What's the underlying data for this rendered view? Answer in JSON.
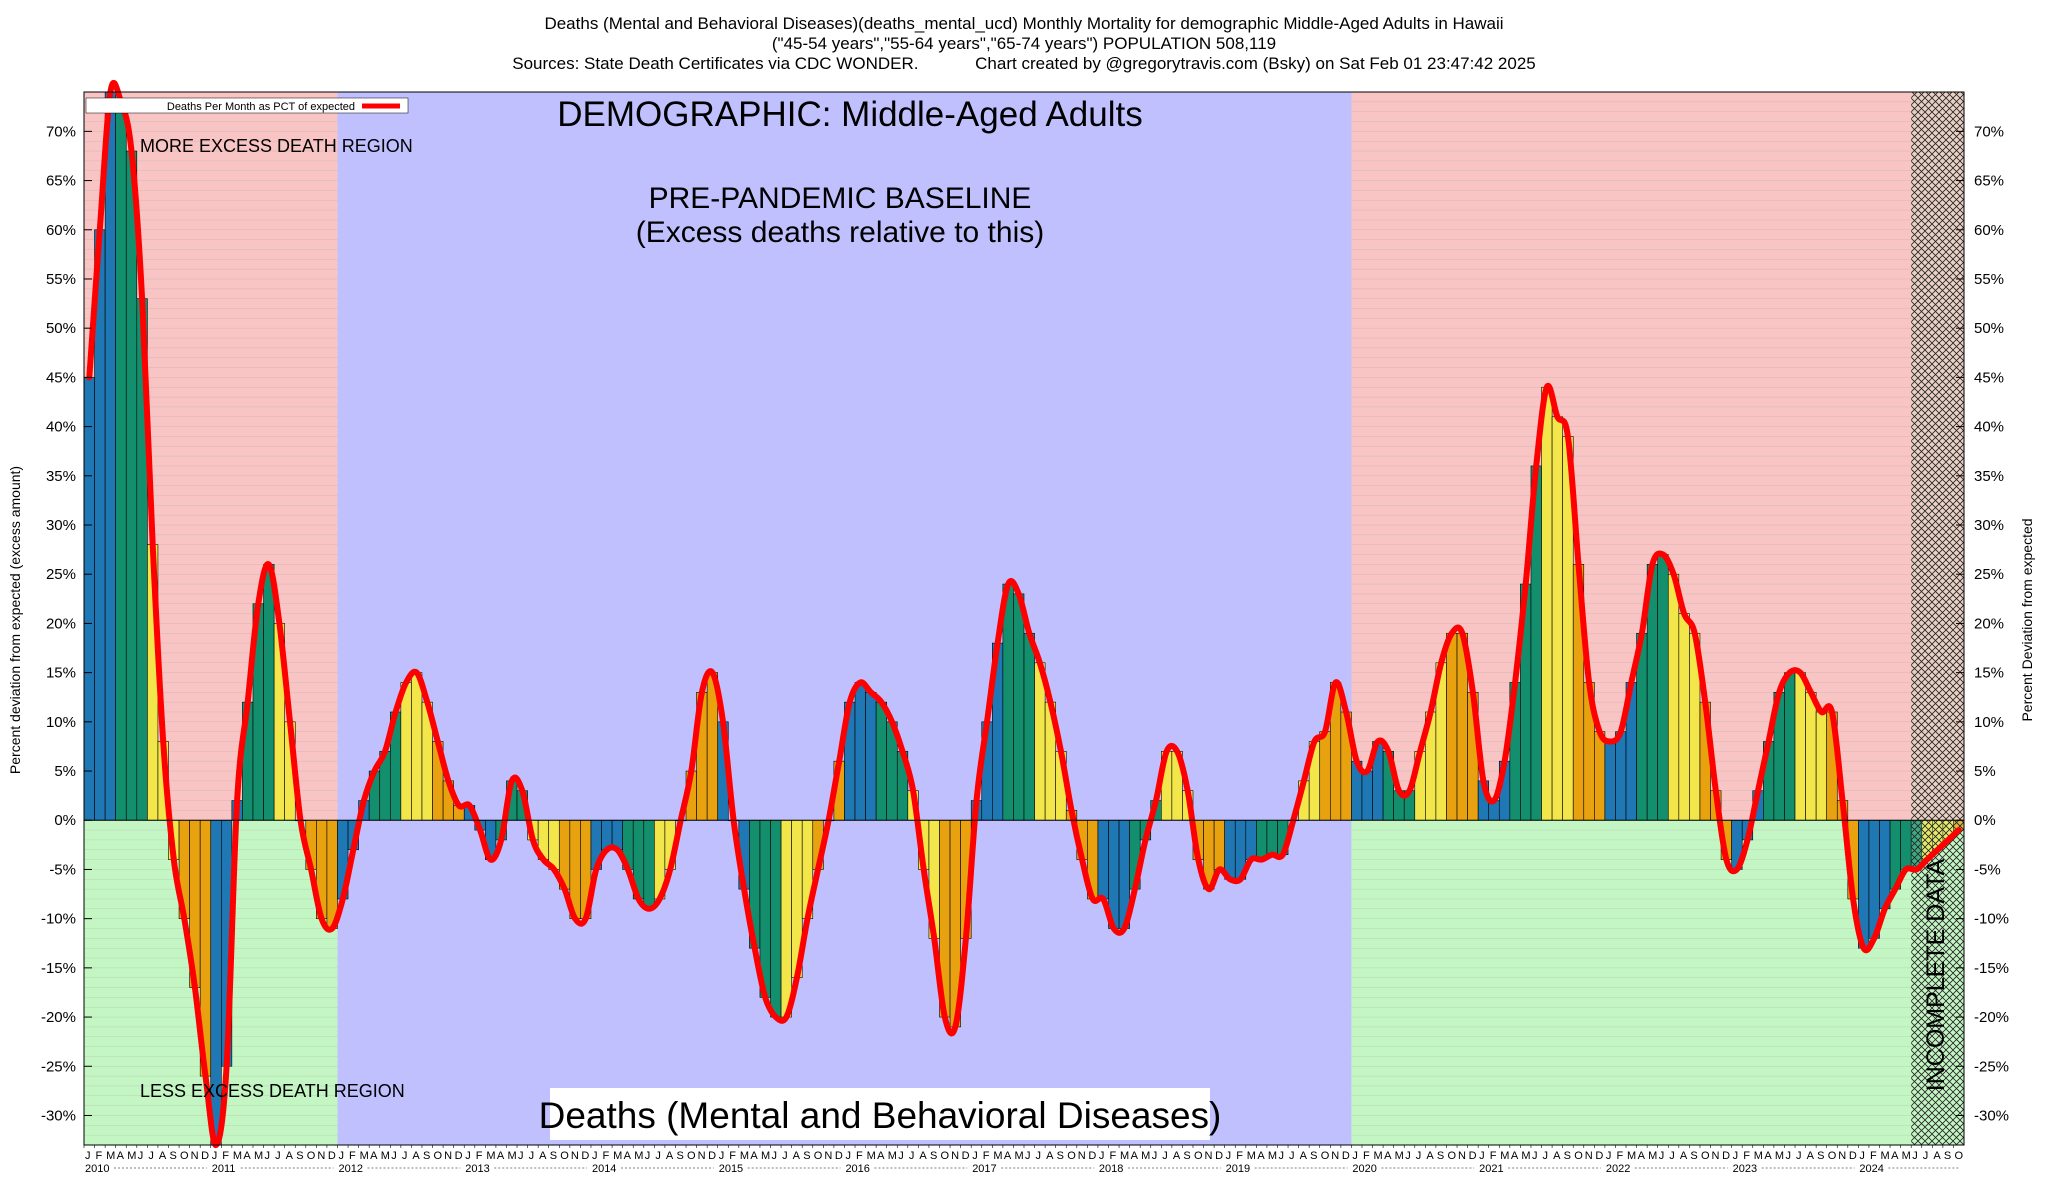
{
  "header": {
    "title": "Deaths (Mental and Behavioral Diseases)(deaths_mental_ucd) Monthly Mortality for demographic Middle-Aged Adults in Hawaii",
    "subtitle": "(\"45-54 years\",\"55-64 years\",\"65-74 years\") POPULATION 508,119",
    "sources": "Sources: State Death Certificates via CDC WONDER.",
    "credit": "Chart created by @gregorytravis.com (Bsky) on Sat Feb 01 23:47:42 2025"
  },
  "annotations": {
    "demographic": "DEMOGRAPHIC: Middle-Aged Adults",
    "baseline_line1": "PRE-PANDEMIC BASELINE",
    "baseline_line2": "(Excess deaths relative to this)",
    "more_region": "MORE EXCESS DEATH REGION",
    "less_region": "LESS EXCESS DEATH REGION",
    "cause": "Deaths (Mental and Behavioral Diseases)",
    "incomplete": "INCOMPLETE DATA"
  },
  "legend": {
    "label": "Deaths Per Month as PCT of expected",
    "color": "#ff0000"
  },
  "colors": {
    "excess_bg": "#f8c4c4",
    "deficit_bg": "#c4f6c4",
    "baseline_bg": "#c0c0ff",
    "bar_palette": [
      "#1f77b4",
      "#138f6e",
      "#f2e64a",
      "#e8a10f"
    ],
    "line": "#ff0000"
  },
  "chart_data": {
    "type": "bar",
    "ylabel": "Percent deviation from expected (excess amount)",
    "ylabel_right": "Percent Deviation from expected",
    "ylim": [
      -33,
      74
    ],
    "yticks": [
      70,
      65,
      60,
      55,
      50,
      45,
      40,
      35,
      30,
      25,
      20,
      15,
      10,
      5,
      0,
      -5,
      -10,
      -15,
      -20,
      -25,
      -30
    ],
    "ytick_labels": [
      "70%",
      "65%",
      "60%",
      "55%",
      "50%",
      "45%",
      "40%",
      "35%",
      "30%",
      "25%",
      "20%",
      "15%",
      "10%",
      "5%",
      "0%",
      "-5%",
      "-10%",
      "-15%",
      "-20%",
      "-25%",
      "-30%"
    ],
    "month_letters": [
      "J",
      "F",
      "M",
      "A",
      "M",
      "J",
      "J",
      "A",
      "S",
      "O",
      "N",
      "D"
    ],
    "years": [
      "2010",
      "2011",
      "2012",
      "2013",
      "2014",
      "2015",
      "2016",
      "2017",
      "2018",
      "2019",
      "2020",
      "2021",
      "2022",
      "2023",
      "2024"
    ],
    "start": "2010-01",
    "baseline_period": [
      "2012-01",
      "2019-12"
    ],
    "incomplete_from": "2024-06",
    "grid": true,
    "legend_position": "top-left",
    "series": [
      {
        "name": "Deaths Per Month as PCT of expected",
        "values": [
          45,
          60,
          74,
          73,
          68,
          53,
          28,
          8,
          -4,
          -10,
          -17,
          -26,
          -33,
          -25,
          2,
          12,
          22,
          26,
          20,
          10,
          0,
          -5,
          -10,
          -11,
          -8,
          -3,
          2,
          5,
          7,
          11,
          14,
          15,
          12,
          8,
          4,
          1.5,
          1.5,
          -1,
          -4,
          -2,
          4,
          3,
          -2,
          -4,
          -5,
          -7,
          -10,
          -10,
          -5,
          -3,
          -3,
          -5,
          -8,
          -9,
          -8,
          -5,
          0,
          5,
          13,
          15,
          10,
          0,
          -7,
          -13,
          -18,
          -20,
          -20,
          -16,
          -10,
          -5,
          0,
          6,
          12,
          14,
          13,
          12,
          10,
          7,
          3,
          -5,
          -12,
          -20,
          -21,
          -12,
          2,
          10,
          18,
          24,
          23,
          19,
          16,
          12,
          7,
          1,
          -4,
          -8,
          -8,
          -11,
          -11,
          -7,
          -2,
          2,
          7,
          7,
          3,
          -4,
          -7,
          -5,
          -6,
          -6,
          -4,
          -4,
          -3.5,
          -3.5,
          0,
          4,
          8,
          9,
          14,
          11,
          6,
          5,
          8,
          7,
          3,
          3,
          7,
          11,
          16,
          19,
          19,
          13,
          4,
          2,
          6,
          14,
          24,
          36,
          44,
          41,
          39,
          26,
          14,
          9,
          8,
          9,
          14,
          19,
          26,
          27,
          25,
          21,
          19,
          12,
          3,
          -4,
          -5,
          -2,
          3,
          8,
          13,
          15,
          15,
          13,
          11,
          11,
          2,
          -8,
          -13,
          -12,
          -9,
          -7,
          -5,
          -5,
          -4,
          -3,
          -2,
          -1
        ]
      }
    ]
  }
}
